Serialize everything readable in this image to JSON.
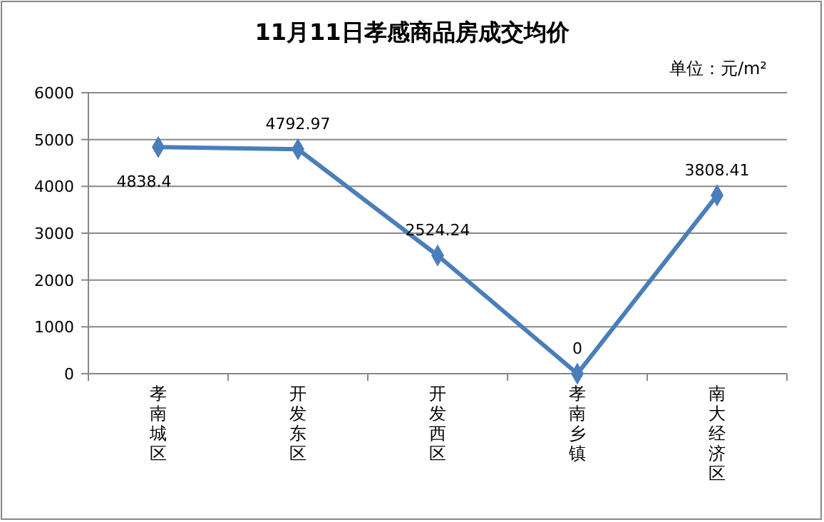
{
  "chart_data": {
    "type": "line",
    "title": "11月11日孝感商品房成交均价",
    "annotations": [
      "单位：元/m²"
    ],
    "categories": [
      "孝南城区",
      "开发东区",
      "开发西区",
      "孝南乡镇",
      "南大经济区"
    ],
    "series": [
      {
        "color": "#4a7ebb",
        "values": [
          4838.4,
          4792.97,
          2524.24,
          0,
          3808.41
        ]
      }
    ],
    "ylim": [
      0,
      6000
    ],
    "yticks": [
      0,
      1000,
      2000,
      3000,
      4000,
      5000,
      6000
    ],
    "grid": "y",
    "marker": "diamond",
    "data_labels": true
  }
}
